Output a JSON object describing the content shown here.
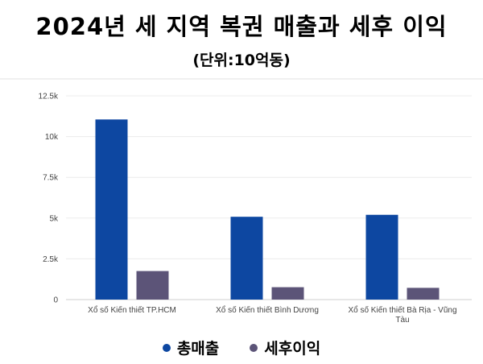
{
  "chart_data": {
    "type": "bar",
    "title": "2024년 세 지역 복권 매출과 세후 이익",
    "subtitle": "(단위:10억동)",
    "categories": [
      [
        "Xổ số Kiến thiết TP.HCM"
      ],
      [
        "Xổ số Kiến thiết Bình Dương"
      ],
      [
        "Xổ số Kiến thiết Bà Rịa - Vũng",
        "Tàu"
      ]
    ],
    "series": [
      {
        "name": "총매출",
        "color": "#0d47a1",
        "values": [
          11050,
          5080,
          5200
        ]
      },
      {
        "name": "세후이익",
        "color": "#5c5478",
        "values": [
          1750,
          760,
          720
        ]
      }
    ],
    "ylim": [
      0,
      12500
    ],
    "yticks": [
      0,
      2500,
      5000,
      7500,
      10000,
      12500
    ],
    "ytick_labels": [
      "0",
      "2.5k",
      "5k",
      "7.5k",
      "10k",
      "12.5k"
    ],
    "grid": true,
    "legend_position": "bottom"
  }
}
